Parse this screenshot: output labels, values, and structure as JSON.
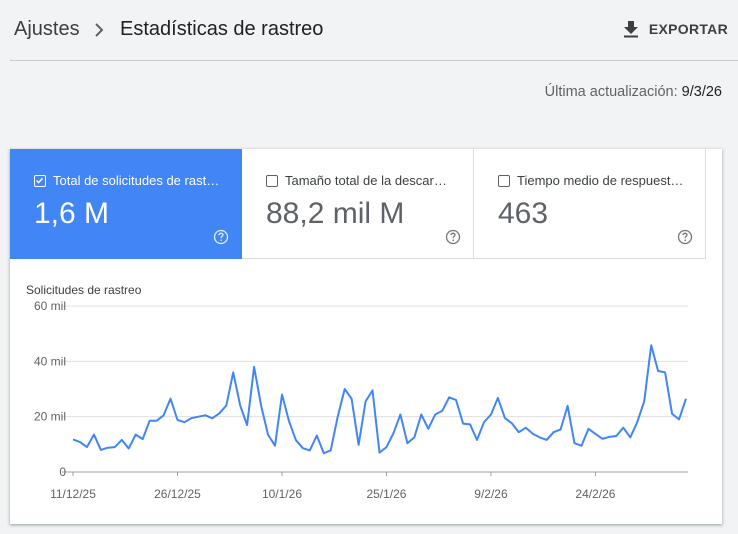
{
  "header": {
    "breadcrumb_root": "Ajustes",
    "title": "Estadísticas de rastreo",
    "export_label": "EXPORTAR"
  },
  "last_update": {
    "label": "Última actualización:",
    "value": "9/3/26"
  },
  "metrics": [
    {
      "label": "Total de solicitudes de rastreo",
      "display_label": "Total de solicitudes de rast…",
      "value": "1,6 M",
      "checked": true
    },
    {
      "label": "Tamaño total de la descarga",
      "display_label": "Tamaño total de la descar…",
      "value": "88,2 mil M",
      "checked": false
    },
    {
      "label": "Tiempo medio de respuesta",
      "display_label": "Tiempo medio de respuest…",
      "value": "463",
      "checked": false
    }
  ],
  "colors": {
    "accent": "#4285f4",
    "line": "#4285f4",
    "grid": "#e0e0e0"
  },
  "chart_data": {
    "type": "line",
    "title": "Solicitudes de rastreo",
    "y_ticks": [
      "60 mil",
      "40 mil",
      "20 mil",
      "0"
    ],
    "y_tick_values": [
      60000,
      40000,
      20000,
      0
    ],
    "ylim": [
      0,
      60000
    ],
    "x_tick_labels": [
      "11/12/25",
      "26/12/25",
      "10/1/26",
      "25/1/26",
      "9/2/26",
      "24/2/26"
    ],
    "x_tick_indices": [
      0,
      15,
      30,
      45,
      60,
      75
    ],
    "grid": true,
    "series": [
      {
        "values": [
          11800,
          10800,
          9000,
          13500,
          8000,
          8800,
          9000,
          11600,
          8500,
          13500,
          11900,
          18500,
          18500,
          20500,
          26500,
          18800,
          18000,
          19500,
          20000,
          20500,
          19400,
          21200,
          24000,
          36000,
          24000,
          17000,
          38000,
          24000,
          13500,
          9500,
          28000,
          18500,
          11500,
          8600,
          7800,
          13200,
          6800,
          7800,
          20000,
          30000,
          26500,
          9800,
          25500,
          29500,
          7000,
          9000,
          14000,
          20800,
          10400,
          12500,
          20800,
          15600,
          20800,
          22100,
          27000,
          26000,
          17500,
          17200,
          11600,
          18000,
          20800,
          26800,
          19500,
          17600,
          14400,
          16000,
          13800,
          12500,
          11600,
          14400,
          15400,
          23900,
          10400,
          9500,
          15600,
          13800,
          12000,
          12700,
          13000,
          16000,
          12500,
          18000,
          25500,
          45800,
          36500,
          36000,
          21000,
          19000,
          26500
        ]
      }
    ]
  }
}
